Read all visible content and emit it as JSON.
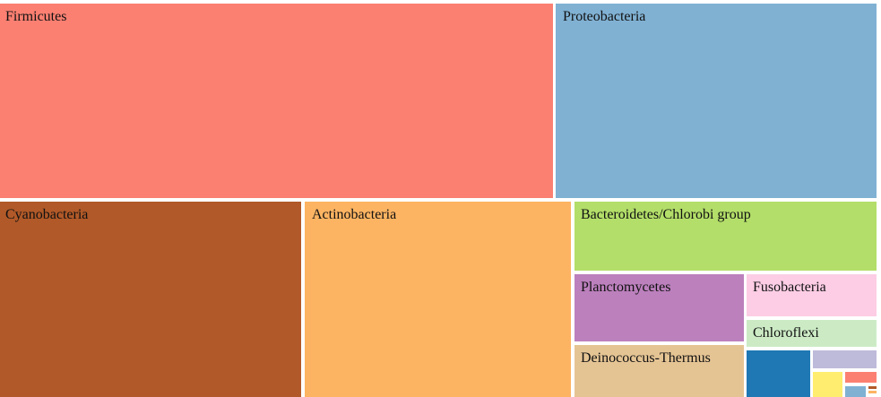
{
  "chart_data": {
    "type": "treemap",
    "title": "",
    "nodes": [
      {
        "label": "Firmicutes",
        "color": "#fb8072",
        "value": 133800
      },
      {
        "label": "Proteobacteria",
        "color": "#80b1d3",
        "value": 78100
      },
      {
        "label": "Cyanobacteria",
        "color": "#b15928",
        "value": 73700
      },
      {
        "label": "Actinobacteria",
        "color": "#fdb462",
        "value": 64800
      },
      {
        "label": "Bacteroidetes/Chlorobi group",
        "color": "#b3de69",
        "value": 26900
      },
      {
        "label": "Planctomycetes",
        "color": "#bc80bd",
        "value": 15300
      },
      {
        "label": "Fusobacteria",
        "color": "#fccde5",
        "value": 8500
      },
      {
        "label": "Deinococcus-Thermus",
        "color": "#e5c494",
        "value": 11400
      },
      {
        "label": "Chloroflexi",
        "color": "#ccebc5",
        "value": 5200
      },
      {
        "label": "",
        "color": "#1f78b4",
        "value": 3500
      },
      {
        "label": "",
        "color": "#bebada",
        "value": 1800
      },
      {
        "label": "",
        "color": "#ffed6f",
        "value": 1000
      },
      {
        "label": "",
        "color": "#fb8072",
        "value": 600
      },
      {
        "label": "",
        "color": "#80b1d3",
        "value": 350
      },
      {
        "label": "",
        "color": "#b15928",
        "value": 60
      },
      {
        "label": "",
        "color": "#fdb462",
        "value": 60
      }
    ]
  }
}
